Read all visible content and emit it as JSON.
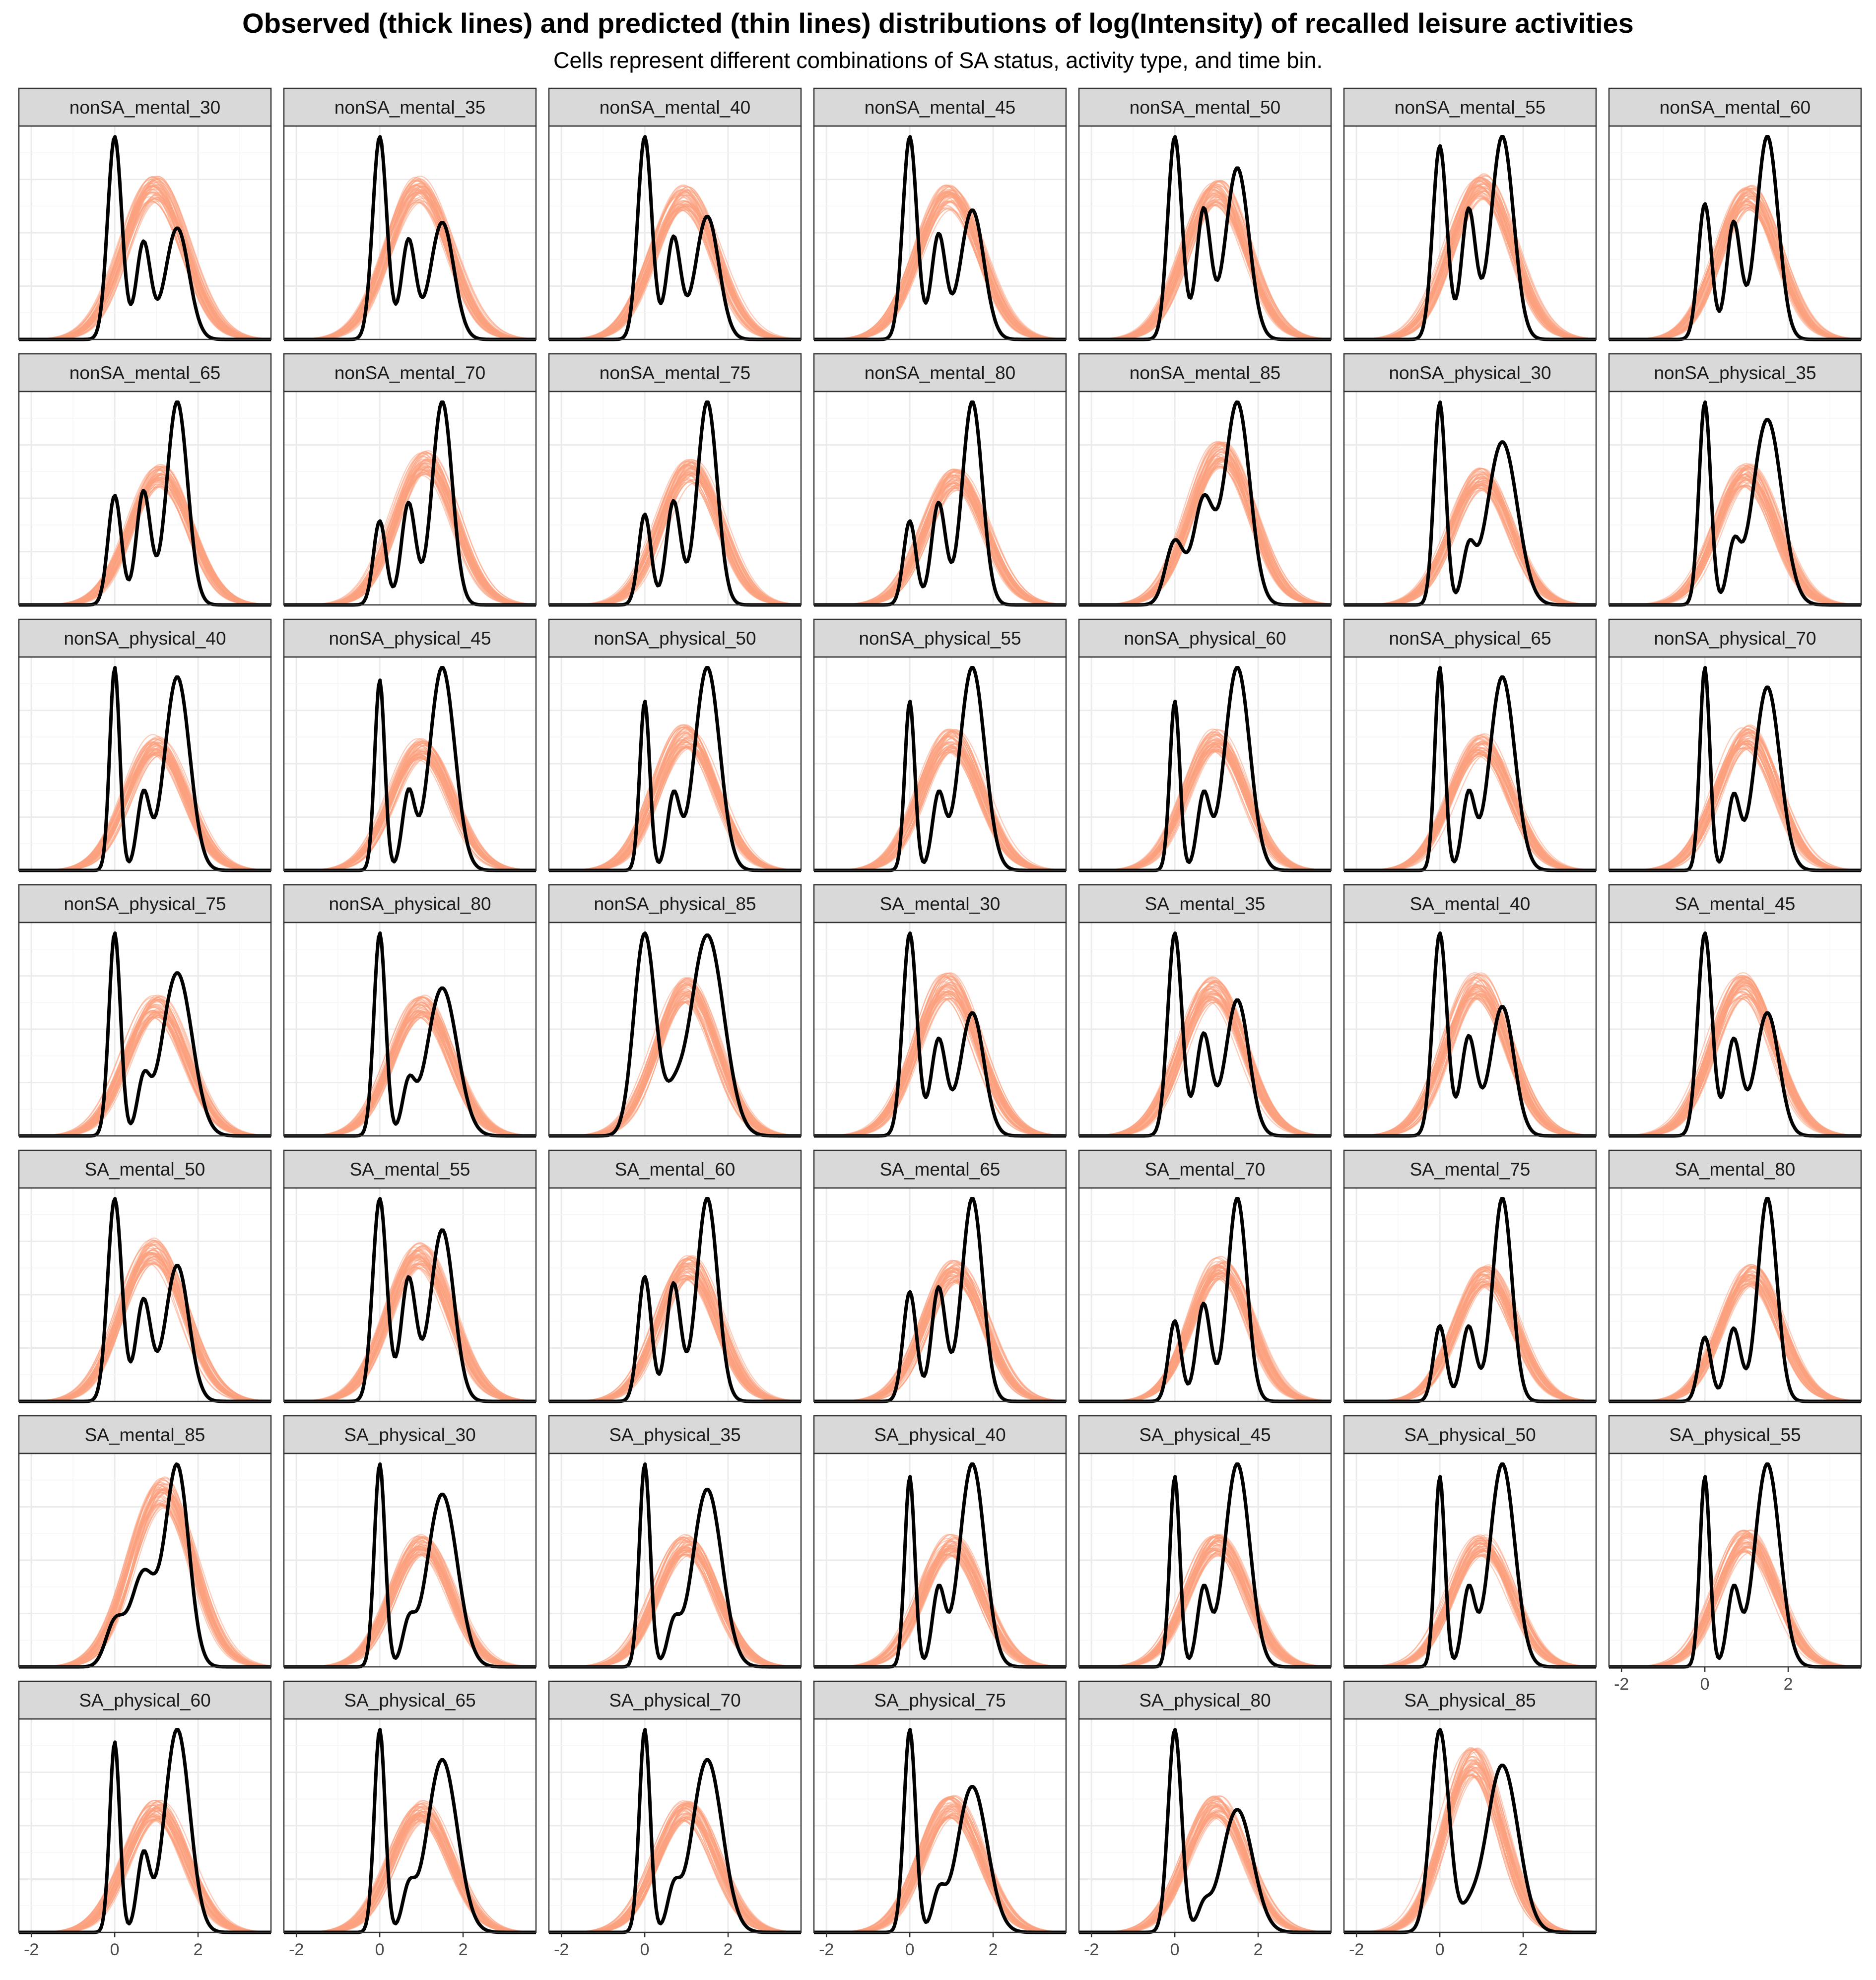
{
  "title": "Observed (thick lines) and predicted (thin lines) distributions of log(Intensity) of recalled leisure activities",
  "subtitle": "Cells represent different combinations of SA status, activity type, and time bin.",
  "chart_data": {
    "type": "line",
    "chart_kind": "faceted density plot",
    "xlim": [
      -2.3,
      3.75
    ],
    "x_ticks": [
      -2,
      0,
      2
    ],
    "x_tick_labels": [
      "-2",
      "0",
      "2"
    ],
    "y_axis_labels_shown": false,
    "grid": true,
    "n_columns": 7,
    "colors": {
      "observed": "#000000",
      "predicted": "#fca17d",
      "strip_fill": "#d9d9d9",
      "panel_border": "#333333",
      "grid_major": "#ebebeb",
      "grid_minor": "#f5f5f5"
    },
    "series_descriptions": {
      "observed": "thick black line, mixture of peaks at log(Intensity) 0, ~0.7 and ~1.5",
      "predicted": "thin orange lines, many posterior draws roughly Gaussian"
    },
    "panels": [
      {
        "label": "nonSA_mental_30",
        "obs": {
          "w0": 0.42,
          "w1": 0.2,
          "w2": 0.38,
          "s0": 0.17,
          "s1": 0.17,
          "s2": 0.28
        },
        "pred": {
          "mu": 0.95,
          "sd": 0.75,
          "peak": 0.74
        }
      },
      {
        "label": "nonSA_mental_35",
        "obs": {
          "w0": 0.41,
          "w1": 0.2,
          "w2": 0.39,
          "s0": 0.17,
          "s1": 0.17,
          "s2": 0.28
        },
        "pred": {
          "mu": 0.95,
          "sd": 0.75,
          "peak": 0.74
        }
      },
      {
        "label": "nonSA_mental_40",
        "obs": {
          "w0": 0.4,
          "w1": 0.2,
          "w2": 0.4,
          "s0": 0.17,
          "s1": 0.17,
          "s2": 0.28
        },
        "pred": {
          "mu": 0.95,
          "sd": 0.75,
          "peak": 0.7
        }
      },
      {
        "label": "nonSA_mental_45",
        "obs": {
          "w0": 0.39,
          "w1": 0.2,
          "w2": 0.41,
          "s0": 0.17,
          "s1": 0.17,
          "s2": 0.28
        },
        "pred": {
          "mu": 0.95,
          "sd": 0.75,
          "peak": 0.7
        }
      },
      {
        "label": "nonSA_mental_50",
        "obs": {
          "w0": 0.33,
          "w1": 0.21,
          "w2": 0.46,
          "s0": 0.17,
          "s1": 0.17,
          "s2": 0.28
        },
        "pred": {
          "mu": 1.0,
          "sd": 0.75,
          "peak": 0.72
        }
      },
      {
        "label": "nonSA_mental_55",
        "obs": {
          "w0": 0.3,
          "w1": 0.2,
          "w2": 0.5,
          "s0": 0.17,
          "s1": 0.17,
          "s2": 0.27
        },
        "pred": {
          "mu": 1.0,
          "sd": 0.75,
          "peak": 0.75
        }
      },
      {
        "label": "nonSA_mental_60",
        "obs": {
          "w0": 0.23,
          "w1": 0.21,
          "w2": 0.56,
          "s0": 0.16,
          "s1": 0.17,
          "s2": 0.26
        },
        "pred": {
          "mu": 1.05,
          "sd": 0.72,
          "peak": 0.7
        }
      },
      {
        "label": "nonSA_mental_65",
        "obs": {
          "w0": 0.2,
          "w1": 0.22,
          "w2": 0.58,
          "s0": 0.16,
          "s1": 0.17,
          "s2": 0.25
        },
        "pred": {
          "mu": 1.1,
          "sd": 0.72,
          "peak": 0.64
        }
      },
      {
        "label": "nonSA_mental_70",
        "obs": {
          "w0": 0.16,
          "w1": 0.22,
          "w2": 0.62,
          "s0": 0.15,
          "s1": 0.17,
          "s2": 0.24
        },
        "pred": {
          "mu": 1.1,
          "sd": 0.72,
          "peak": 0.7
        }
      },
      {
        "label": "nonSA_mental_75",
        "obs": {
          "w0": 0.17,
          "w1": 0.22,
          "w2": 0.61,
          "s0": 0.15,
          "s1": 0.17,
          "s2": 0.24
        },
        "pred": {
          "mu": 1.1,
          "sd": 0.72,
          "peak": 0.66
        }
      },
      {
        "label": "nonSA_mental_80",
        "obs": {
          "w0": 0.16,
          "w1": 0.22,
          "w2": 0.62,
          "s0": 0.15,
          "s1": 0.17,
          "s2": 0.24
        },
        "pred": {
          "mu": 1.1,
          "sd": 0.72,
          "peak": 0.62
        }
      },
      {
        "label": "nonSA_mental_85",
        "obs": {
          "w0": 0.14,
          "w1": 0.25,
          "w2": 0.61,
          "s0": 0.22,
          "s1": 0.24,
          "s2": 0.3
        },
        "pred": {
          "mu": 1.1,
          "sd": 0.75,
          "peak": 0.74
        }
      },
      {
        "label": "nonSA_physical_30",
        "obs": {
          "w0": 0.3,
          "w1": 0.08,
          "w2": 0.62,
          "s0": 0.14,
          "s1": 0.15,
          "s2": 0.36
        },
        "pred": {
          "mu": 1.0,
          "sd": 0.72,
          "peak": 0.62
        }
      },
      {
        "label": "nonSA_physical_35",
        "obs": {
          "w0": 0.28,
          "w1": 0.08,
          "w2": 0.64,
          "s0": 0.14,
          "s1": 0.15,
          "s2": 0.35
        },
        "pred": {
          "mu": 1.0,
          "sd": 0.72,
          "peak": 0.64
        }
      },
      {
        "label": "nonSA_physical_40",
        "obs": {
          "w0": 0.26,
          "w1": 0.12,
          "w2": 0.62,
          "s0": 0.12,
          "s1": 0.15,
          "s2": 0.3
        },
        "pred": {
          "mu": 1.0,
          "sd": 0.72,
          "peak": 0.62
        }
      },
      {
        "label": "nonSA_physical_45",
        "obs": {
          "w0": 0.24,
          "w1": 0.12,
          "w2": 0.64,
          "s0": 0.12,
          "s1": 0.15,
          "s2": 0.3
        },
        "pred": {
          "mu": 1.0,
          "sd": 0.72,
          "peak": 0.6
        }
      },
      {
        "label": "nonSA_physical_50",
        "obs": {
          "w0": 0.22,
          "w1": 0.12,
          "w2": 0.66,
          "s0": 0.12,
          "s1": 0.15,
          "s2": 0.3
        },
        "pred": {
          "mu": 1.0,
          "sd": 0.72,
          "peak": 0.66
        }
      },
      {
        "label": "nonSA_physical_55",
        "obs": {
          "w0": 0.22,
          "w1": 0.12,
          "w2": 0.66,
          "s0": 0.12,
          "s1": 0.15,
          "s2": 0.3
        },
        "pred": {
          "mu": 1.0,
          "sd": 0.72,
          "peak": 0.64
        }
      },
      {
        "label": "nonSA_physical_60",
        "obs": {
          "w0": 0.22,
          "w1": 0.12,
          "w2": 0.66,
          "s0": 0.12,
          "s1": 0.15,
          "s2": 0.3
        },
        "pred": {
          "mu": 1.0,
          "sd": 0.72,
          "peak": 0.64
        }
      },
      {
        "label": "nonSA_physical_65",
        "obs": {
          "w0": 0.26,
          "w1": 0.12,
          "w2": 0.62,
          "s0": 0.12,
          "s1": 0.15,
          "s2": 0.3
        },
        "pred": {
          "mu": 1.0,
          "sd": 0.72,
          "peak": 0.62
        }
      },
      {
        "label": "nonSA_physical_70",
        "obs": {
          "w0": 0.27,
          "w1": 0.12,
          "w2": 0.61,
          "s0": 0.12,
          "s1": 0.15,
          "s2": 0.3
        },
        "pred": {
          "mu": 1.0,
          "sd": 0.72,
          "peak": 0.66
        }
      },
      {
        "label": "nonSA_physical_75",
        "obs": {
          "w0": 0.3,
          "w1": 0.08,
          "w2": 0.62,
          "s0": 0.14,
          "s1": 0.15,
          "s2": 0.36
        },
        "pred": {
          "mu": 1.0,
          "sd": 0.72,
          "peak": 0.64
        }
      },
      {
        "label": "nonSA_physical_80",
        "obs": {
          "w0": 0.32,
          "w1": 0.08,
          "w2": 0.6,
          "s0": 0.14,
          "s1": 0.15,
          "s2": 0.36
        },
        "pred": {
          "mu": 1.0,
          "sd": 0.72,
          "peak": 0.64
        }
      },
      {
        "label": "nonSA_physical_85",
        "obs": {
          "w0": 0.38,
          "w1": 0.04,
          "w2": 0.58,
          "s0": 0.26,
          "s1": 0.2,
          "s2": 0.4
        },
        "pred": {
          "mu": 1.0,
          "sd": 0.72,
          "peak": 0.72
        }
      },
      {
        "label": "SA_mental_30",
        "obs": {
          "w0": 0.4,
          "w1": 0.2,
          "w2": 0.4,
          "s0": 0.17,
          "s1": 0.18,
          "s2": 0.28
        },
        "pred": {
          "mu": 0.9,
          "sd": 0.75,
          "peak": 0.74
        }
      },
      {
        "label": "SA_mental_35",
        "obs": {
          "w0": 0.38,
          "w1": 0.2,
          "w2": 0.42,
          "s0": 0.17,
          "s1": 0.18,
          "s2": 0.28
        },
        "pred": {
          "mu": 0.9,
          "sd": 0.75,
          "peak": 0.72
        }
      },
      {
        "label": "SA_mental_40",
        "obs": {
          "w0": 0.39,
          "w1": 0.2,
          "w2": 0.41,
          "s0": 0.17,
          "s1": 0.18,
          "s2": 0.28
        },
        "pred": {
          "mu": 0.9,
          "sd": 0.75,
          "peak": 0.74
        }
      },
      {
        "label": "SA_mental_45",
        "obs": {
          "w0": 0.4,
          "w1": 0.2,
          "w2": 0.4,
          "s0": 0.17,
          "s1": 0.18,
          "s2": 0.28
        },
        "pred": {
          "mu": 0.9,
          "sd": 0.75,
          "peak": 0.74
        }
      },
      {
        "label": "SA_mental_50",
        "obs": {
          "w0": 0.38,
          "w1": 0.2,
          "w2": 0.42,
          "s0": 0.17,
          "s1": 0.18,
          "s2": 0.28
        },
        "pred": {
          "mu": 0.9,
          "sd": 0.75,
          "peak": 0.74
        }
      },
      {
        "label": "SA_mental_55",
        "obs": {
          "w0": 0.33,
          "w1": 0.21,
          "w2": 0.46,
          "s0": 0.17,
          "s1": 0.18,
          "s2": 0.28
        },
        "pred": {
          "mu": 0.95,
          "sd": 0.75,
          "peak": 0.72
        }
      },
      {
        "label": "SA_mental_60",
        "obs": {
          "w0": 0.22,
          "w1": 0.22,
          "w2": 0.56,
          "s0": 0.16,
          "s1": 0.17,
          "s2": 0.25
        },
        "pred": {
          "mu": 1.05,
          "sd": 0.72,
          "peak": 0.66
        }
      },
      {
        "label": "SA_mental_65",
        "obs": {
          "w0": 0.2,
          "w1": 0.22,
          "w2": 0.58,
          "s0": 0.16,
          "s1": 0.17,
          "s2": 0.25
        },
        "pred": {
          "mu": 1.1,
          "sd": 0.72,
          "peak": 0.64
        }
      },
      {
        "label": "SA_mental_70",
        "obs": {
          "w0": 0.16,
          "w1": 0.22,
          "w2": 0.62,
          "s0": 0.15,
          "s1": 0.17,
          "s2": 0.23
        },
        "pred": {
          "mu": 1.1,
          "sd": 0.72,
          "peak": 0.66
        }
      },
      {
        "label": "SA_mental_75",
        "obs": {
          "w0": 0.16,
          "w1": 0.18,
          "w2": 0.66,
          "s0": 0.15,
          "s1": 0.17,
          "s2": 0.23
        },
        "pred": {
          "mu": 1.1,
          "sd": 0.72,
          "peak": 0.62
        }
      },
      {
        "label": "SA_mental_80",
        "obs": {
          "w0": 0.14,
          "w1": 0.18,
          "w2": 0.68,
          "s0": 0.15,
          "s1": 0.17,
          "s2": 0.23
        },
        "pred": {
          "mu": 1.1,
          "sd": 0.72,
          "peak": 0.62
        }
      },
      {
        "label": "SA_mental_85",
        "obs": {
          "w0": 0.1,
          "w1": 0.3,
          "w2": 0.6,
          "s0": 0.22,
          "s1": 0.3,
          "s2": 0.28
        },
        "pred": {
          "mu": 1.15,
          "sd": 0.75,
          "peak": 0.86
        }
      },
      {
        "label": "SA_physical_30",
        "obs": {
          "w0": 0.28,
          "w1": 0.06,
          "w2": 0.66,
          "s0": 0.13,
          "s1": 0.15,
          "s2": 0.36
        },
        "pred": {
          "mu": 1.0,
          "sd": 0.72,
          "peak": 0.6
        }
      },
      {
        "label": "SA_physical_35",
        "obs": {
          "w0": 0.28,
          "w1": 0.06,
          "w2": 0.66,
          "s0": 0.13,
          "s1": 0.15,
          "s2": 0.35
        },
        "pred": {
          "mu": 1.0,
          "sd": 0.72,
          "peak": 0.6
        }
      },
      {
        "label": "SA_physical_40",
        "obs": {
          "w0": 0.24,
          "w1": 0.12,
          "w2": 0.64,
          "s0": 0.12,
          "s1": 0.15,
          "s2": 0.3
        },
        "pred": {
          "mu": 1.0,
          "sd": 0.72,
          "peak": 0.6
        }
      },
      {
        "label": "SA_physical_45",
        "obs": {
          "w0": 0.24,
          "w1": 0.12,
          "w2": 0.64,
          "s0": 0.12,
          "s1": 0.15,
          "s2": 0.3
        },
        "pred": {
          "mu": 1.0,
          "sd": 0.72,
          "peak": 0.6
        }
      },
      {
        "label": "SA_physical_50",
        "obs": {
          "w0": 0.24,
          "w1": 0.12,
          "w2": 0.64,
          "s0": 0.12,
          "s1": 0.15,
          "s2": 0.3
        },
        "pred": {
          "mu": 1.0,
          "sd": 0.72,
          "peak": 0.6
        }
      },
      {
        "label": "SA_physical_55",
        "obs": {
          "w0": 0.24,
          "w1": 0.12,
          "w2": 0.64,
          "s0": 0.12,
          "s1": 0.15,
          "s2": 0.3
        },
        "pred": {
          "mu": 1.0,
          "sd": 0.72,
          "peak": 0.62
        }
      },
      {
        "label": "SA_physical_60",
        "obs": {
          "w0": 0.24,
          "w1": 0.12,
          "w2": 0.64,
          "s0": 0.12,
          "s1": 0.15,
          "s2": 0.3
        },
        "pred": {
          "mu": 1.0,
          "sd": 0.72,
          "peak": 0.6
        }
      },
      {
        "label": "SA_physical_65",
        "obs": {
          "w0": 0.28,
          "w1": 0.06,
          "w2": 0.66,
          "s0": 0.13,
          "s1": 0.15,
          "s2": 0.36
        },
        "pred": {
          "mu": 1.0,
          "sd": 0.72,
          "peak": 0.6
        }
      },
      {
        "label": "SA_physical_70",
        "obs": {
          "w0": 0.28,
          "w1": 0.06,
          "w2": 0.66,
          "s0": 0.13,
          "s1": 0.15,
          "s2": 0.36
        },
        "pred": {
          "mu": 1.0,
          "sd": 0.72,
          "peak": 0.6
        }
      },
      {
        "label": "SA_physical_75",
        "obs": {
          "w0": 0.33,
          "w1": 0.06,
          "w2": 0.61,
          "s0": 0.14,
          "s1": 0.15,
          "s2": 0.36
        },
        "pred": {
          "mu": 1.0,
          "sd": 0.72,
          "peak": 0.62
        }
      },
      {
        "label": "SA_physical_80",
        "obs": {
          "w0": 0.4,
          "w1": 0.04,
          "w2": 0.56,
          "s0": 0.16,
          "s1": 0.15,
          "s2": 0.37
        },
        "pred": {
          "mu": 1.0,
          "sd": 0.72,
          "peak": 0.62
        }
      },
      {
        "label": "SA_physical_85",
        "obs": {
          "w0": 0.4,
          "w1": 0.03,
          "w2": 0.57,
          "s0": 0.22,
          "s1": 0.2,
          "s2": 0.38
        },
        "pred": {
          "mu": 0.8,
          "sd": 0.7,
          "peak": 0.84
        }
      }
    ]
  }
}
